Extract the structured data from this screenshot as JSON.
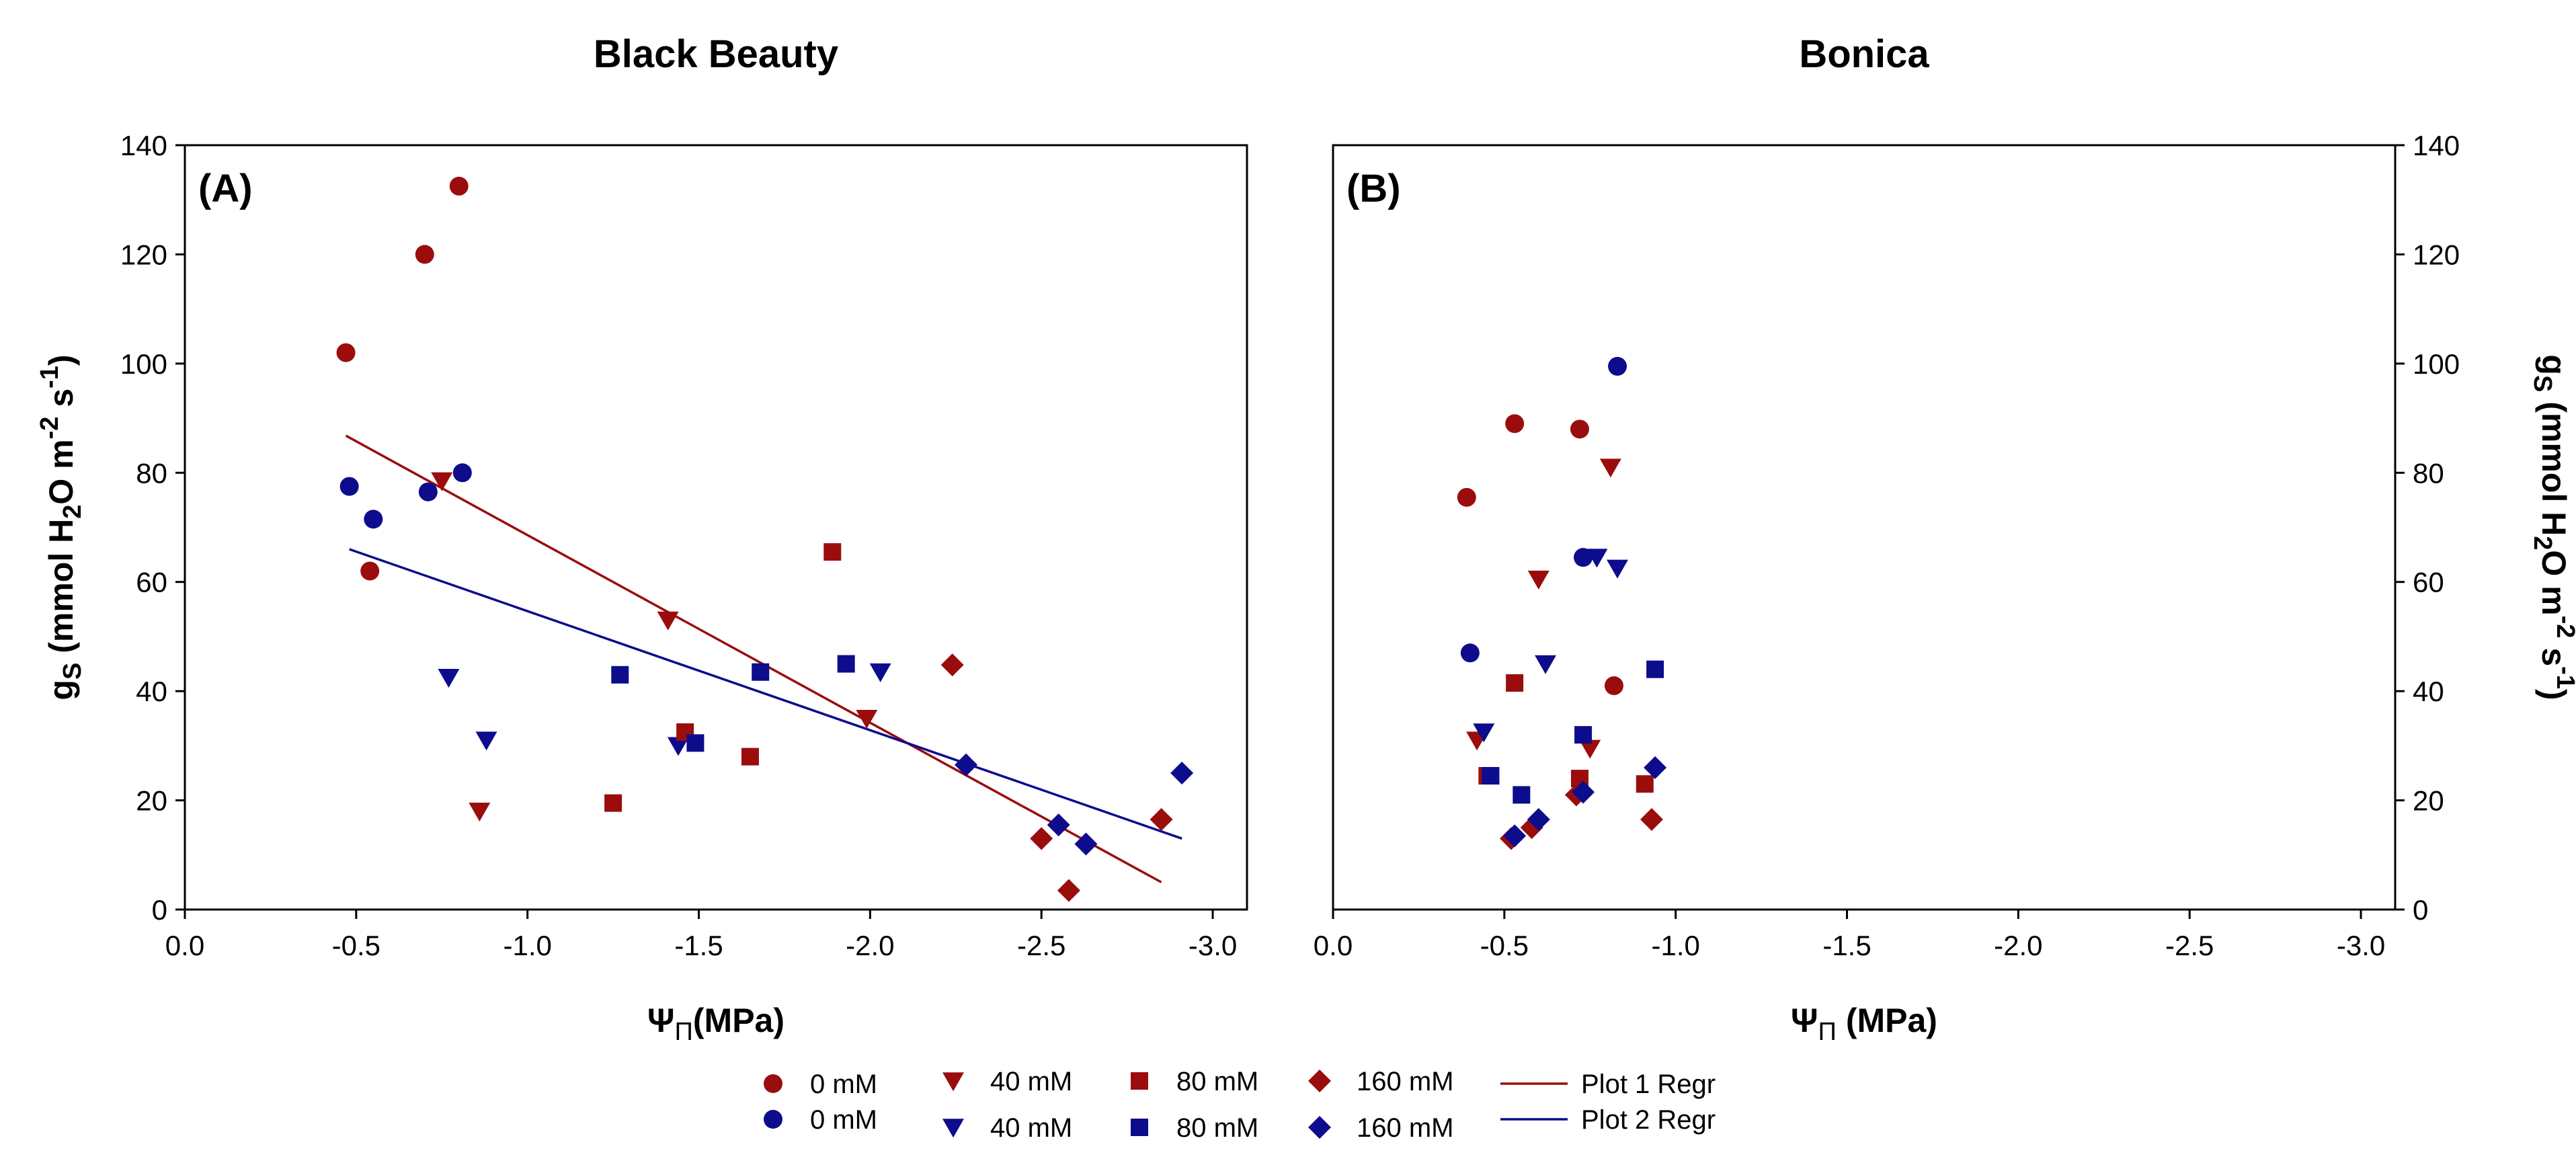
{
  "colors": {
    "series_a": "#9b0d0d",
    "series_b": "#0c0c8c",
    "regr_a": "#9b0d0d",
    "regr_b": "#0c0c8c",
    "axis": "#000000"
  },
  "chart_data": [
    {
      "type": "scatter",
      "panel_label": "(A)",
      "title": "Black Beauty",
      "xlabel": "ΨΠ(MPa)",
      "ylabel": "gS (mmol H2O m-2 s-1)",
      "xlim": [
        0,
        -3.1
      ],
      "ylim": [
        0,
        140
      ],
      "x_ticks": [
        "0.0",
        "-0.5",
        "-1.0",
        "-1.5",
        "-2.0",
        "-2.5",
        "-3.0"
      ],
      "x_tick_values": [
        0,
        -0.5,
        -1.0,
        -1.5,
        -2.0,
        -2.5,
        -3.0
      ],
      "y_ticks": [
        "0",
        "20",
        "40",
        "60",
        "80",
        "100",
        "120",
        "140"
      ],
      "y_tick_values": [
        0,
        20,
        40,
        60,
        80,
        100,
        120,
        140
      ],
      "y_axis_side": "left",
      "series": [
        {
          "name": "0 mM",
          "plot": 1,
          "marker": "circle",
          "points": [
            [
              -0.47,
              102
            ],
            [
              -0.7,
              120
            ],
            [
              -0.8,
              132.5
            ],
            [
              -0.54,
              62
            ]
          ]
        },
        {
          "name": "0 mM",
          "plot": 2,
          "marker": "circle",
          "points": [
            [
              -0.48,
              77.5
            ],
            [
              -0.55,
              71.5
            ],
            [
              -0.71,
              76.5
            ],
            [
              -0.81,
              80
            ]
          ]
        },
        {
          "name": "40 mM",
          "plot": 1,
          "marker": "triangle-down",
          "points": [
            [
              -0.75,
              78.5
            ],
            [
              -0.86,
              18
            ],
            [
              -1.41,
              53
            ],
            [
              -1.99,
              35
            ]
          ]
        },
        {
          "name": "40 mM",
          "plot": 2,
          "marker": "triangle-down",
          "points": [
            [
              -0.77,
              42.5
            ],
            [
              -0.88,
              31
            ],
            [
              -1.44,
              30
            ],
            [
              -2.03,
              43.5
            ]
          ]
        },
        {
          "name": "80 mM",
          "plot": 1,
          "marker": "square",
          "points": [
            [
              -1.25,
              19.5
            ],
            [
              -1.46,
              32.5
            ],
            [
              -1.65,
              28
            ],
            [
              -1.89,
              65.5
            ]
          ]
        },
        {
          "name": "80 mM",
          "plot": 2,
          "marker": "square",
          "points": [
            [
              -1.27,
              43
            ],
            [
              -1.49,
              30.5
            ],
            [
              -1.68,
              43.5
            ],
            [
              -1.93,
              45
            ]
          ]
        },
        {
          "name": "160 mM",
          "plot": 1,
          "marker": "diamond",
          "points": [
            [
              -2.24,
              44.8
            ],
            [
              -2.5,
              13
            ],
            [
              -2.58,
              3.5
            ],
            [
              -2.85,
              16.5
            ]
          ]
        },
        {
          "name": "160 mM",
          "plot": 2,
          "marker": "diamond",
          "points": [
            [
              -2.28,
              26.5
            ],
            [
              -2.55,
              15.5
            ],
            [
              -2.63,
              12
            ],
            [
              -2.91,
              25
            ]
          ]
        }
      ],
      "regressions": [
        {
          "name": "Plot 1 Regr",
          "plot": 1,
          "x": [
            -0.47,
            -2.85
          ],
          "y": [
            86.8,
            5
          ]
        },
        {
          "name": "Plot 2 Regr",
          "plot": 2,
          "x": [
            -0.48,
            -2.91
          ],
          "y": [
            66,
            13
          ]
        }
      ]
    },
    {
      "type": "scatter",
      "panel_label": "(B)",
      "title": "Bonica",
      "xlabel": "ΨΠ (MPa)",
      "ylabel": "gS (mmol H2O m-2 s-1)",
      "xlim": [
        0,
        -3.1
      ],
      "ylim": [
        0,
        140
      ],
      "x_ticks": [
        "0.0",
        "-0.5",
        "-1.0",
        "-1.5",
        "-2.0",
        "-2.5",
        "-3.0"
      ],
      "x_tick_values": [
        0,
        -0.5,
        -1.0,
        -1.5,
        -2.0,
        -2.5,
        -3.0
      ],
      "y_ticks": [
        "0",
        "20",
        "40",
        "60",
        "80",
        "100",
        "120",
        "140"
      ],
      "y_tick_values": [
        0,
        20,
        40,
        60,
        80,
        100,
        120,
        140
      ],
      "y_axis_side": "right",
      "series": [
        {
          "name": "0 mM",
          "plot": 1,
          "marker": "circle",
          "points": [
            [
              -0.39,
              75.5
            ],
            [
              -0.53,
              89
            ],
            [
              -0.72,
              88
            ],
            [
              -0.82,
              41
            ]
          ]
        },
        {
          "name": "0 mM",
          "plot": 2,
          "marker": "circle",
          "points": [
            [
              -0.4,
              47
            ],
            [
              -0.73,
              64.5
            ],
            [
              -0.83,
              99.5
            ]
          ]
        },
        {
          "name": "40 mM",
          "plot": 1,
          "marker": "triangle-down",
          "points": [
            [
              -0.42,
              31
            ],
            [
              -0.6,
              60.5
            ],
            [
              -0.75,
              29.5
            ],
            [
              -0.81,
              81
            ]
          ]
        },
        {
          "name": "40 mM",
          "plot": 2,
          "marker": "triangle-down",
          "points": [
            [
              -0.44,
              32.5
            ],
            [
              -0.62,
              45
            ],
            [
              -0.77,
              64.5
            ],
            [
              -0.83,
              62.5
            ]
          ]
        },
        {
          "name": "80 mM",
          "plot": 1,
          "marker": "square",
          "points": [
            [
              -0.45,
              24.5
            ],
            [
              -0.53,
              41.5
            ],
            [
              -0.72,
              24
            ],
            [
              -0.91,
              23
            ]
          ]
        },
        {
          "name": "80 mM",
          "plot": 2,
          "marker": "square",
          "points": [
            [
              -0.46,
              24.5
            ],
            [
              -0.55,
              21
            ],
            [
              -0.73,
              32
            ],
            [
              -0.94,
              44
            ]
          ]
        },
        {
          "name": "160 mM",
          "plot": 1,
          "marker": "diamond",
          "points": [
            [
              -0.52,
              13
            ],
            [
              -0.58,
              15
            ],
            [
              -0.71,
              21
            ],
            [
              -0.93,
              16.5
            ]
          ]
        },
        {
          "name": "160 mM",
          "plot": 2,
          "marker": "diamond",
          "points": [
            [
              -0.53,
              13.5
            ],
            [
              -0.6,
              16.5
            ],
            [
              -0.73,
              21.5
            ],
            [
              -0.94,
              26
            ]
          ]
        }
      ],
      "regressions": []
    }
  ],
  "legend": {
    "placement": "bottom-center",
    "entries": [
      {
        "label": "0 mM",
        "marker": "circle",
        "plot": 1
      },
      {
        "label": "0 mM",
        "marker": "circle",
        "plot": 2
      },
      {
        "label": "40 mM",
        "marker": "triangle-down",
        "plot": 1
      },
      {
        "label": "40 mM",
        "marker": "triangle-down",
        "plot": 2
      },
      {
        "label": "80 mM",
        "marker": "square",
        "plot": 1
      },
      {
        "label": "80 mM",
        "marker": "square",
        "plot": 2
      },
      {
        "label": "160 mM",
        "marker": "diamond",
        "plot": 1
      },
      {
        "label": "160 mM",
        "marker": "diamond",
        "plot": 2
      },
      {
        "label": "Plot 1 Regr",
        "marker": "line",
        "plot": 1
      },
      {
        "label": "Plot 2 Regr",
        "marker": "line",
        "plot": 2
      }
    ]
  }
}
